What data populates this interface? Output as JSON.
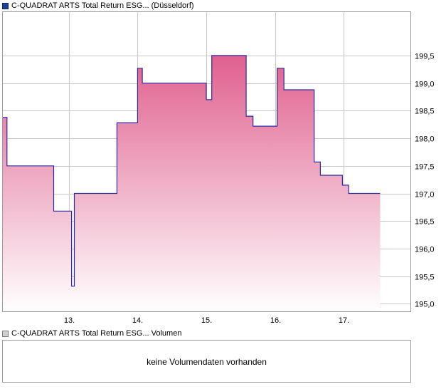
{
  "legend": {
    "price_series": "C-QUADRAT ARTS Total Return ESG... (Düsseldorf)",
    "volume_series": "C-QUADRAT ARTS Total Return ESG... Volumen"
  },
  "volume_panel": {
    "message": "keine Volumendaten vorhanden"
  },
  "colors": {
    "line": "#2b2ba8",
    "fill_top": "#e0608e",
    "fill_bottom": "#ffffff",
    "grid": "#c8c8c8",
    "frame": "#9a9a9a"
  },
  "chart_data": {
    "type": "area",
    "step": true,
    "x_ticks": [
      {
        "x": 13,
        "label": "13."
      },
      {
        "x": 14,
        "label": "14."
      },
      {
        "x": 15,
        "label": "15."
      },
      {
        "x": 16,
        "label": "16."
      },
      {
        "x": 17,
        "label": "17."
      }
    ],
    "y_ticks": [
      {
        "y": 195.0,
        "label": "195,0"
      },
      {
        "y": 195.5,
        "label": "195,5"
      },
      {
        "y": 196.0,
        "label": "196,0"
      },
      {
        "y": 196.5,
        "label": "196,5"
      },
      {
        "y": 197.0,
        "label": "197,0"
      },
      {
        "y": 197.5,
        "label": "197,5"
      },
      {
        "y": 198.0,
        "label": "198,0"
      },
      {
        "y": 198.5,
        "label": "198,5"
      },
      {
        "y": 199.0,
        "label": "199,0"
      },
      {
        "y": 199.5,
        "label": "199,5"
      }
    ],
    "xlim": [
      12.03,
      17.98
    ],
    "ylim": [
      194.85,
      200.3
    ],
    "grid": true,
    "y_axis_side": "right",
    "points": [
      {
        "x": 12.03,
        "y": 198.38
      },
      {
        "x": 12.1,
        "y": 197.5
      },
      {
        "x": 12.78,
        "y": 196.68
      },
      {
        "x": 13.04,
        "y": 195.32
      },
      {
        "x": 13.08,
        "y": 197.0
      },
      {
        "x": 13.7,
        "y": 198.28
      },
      {
        "x": 14.0,
        "y": 199.27
      },
      {
        "x": 14.07,
        "y": 199.0
      },
      {
        "x": 15.0,
        "y": 198.7
      },
      {
        "x": 15.08,
        "y": 199.5
      },
      {
        "x": 15.58,
        "y": 198.4
      },
      {
        "x": 15.68,
        "y": 198.22
      },
      {
        "x": 16.03,
        "y": 199.27
      },
      {
        "x": 16.13,
        "y": 198.88
      },
      {
        "x": 16.57,
        "y": 197.57
      },
      {
        "x": 16.66,
        "y": 197.33
      },
      {
        "x": 16.98,
        "y": 197.15
      },
      {
        "x": 17.07,
        "y": 197.0
      },
      {
        "x": 17.53,
        "y": 197.0
      }
    ]
  }
}
